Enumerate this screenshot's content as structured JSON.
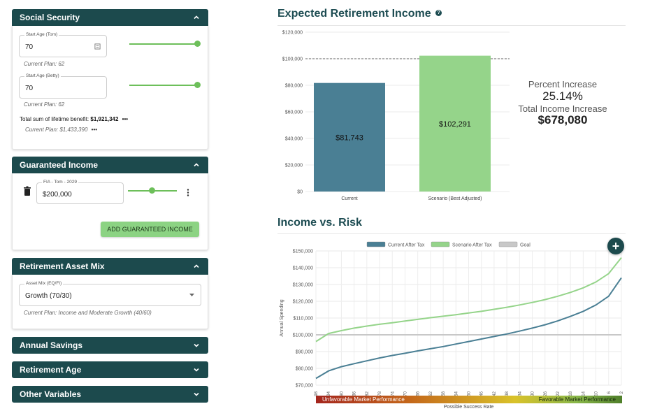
{
  "social_security": {
    "title": "Social Security",
    "tom": {
      "label": "Start Age (Tom)",
      "value": "70",
      "current_plan": "Current Plan: 62",
      "slider_fraction": 1.0
    },
    "betty": {
      "label": "Start Age (Betty)",
      "value": "70",
      "current_plan": "Current Plan: 62",
      "slider_fraction": 1.0
    },
    "total_label": "Total sum of lifetime benefit:",
    "total_value": "$1,921,342",
    "more": "•••",
    "total_current": "Current Plan: $1,433,390"
  },
  "guaranteed_income": {
    "title": "Guaranteed Income",
    "item_label": "FIA - Tom - 2029",
    "item_value": "$200,000",
    "slider_fraction": 0.5,
    "add_button": "ADD GUARANTEED INCOME"
  },
  "asset_mix": {
    "title": "Retirement Asset Mix",
    "field_label": "Asset Mix (EQ/FI)",
    "selected": "Growth (70/30)",
    "current_plan": "Current Plan: Income and Moderate Growth (40/60)"
  },
  "collapsed_sections": [
    {
      "title": "Annual Savings"
    },
    {
      "title": "Retirement Age"
    },
    {
      "title": "Other Variables"
    }
  ],
  "expected_income": {
    "title": "Expected Retirement Income",
    "help_icon": "?",
    "percent_label": "Percent Increase",
    "percent_value": "25.14%",
    "total_label": "Total Income Increase",
    "total_value": "$678,080"
  },
  "income_vs_risk": {
    "title": "Income vs. Risk",
    "fab_icon": "+",
    "band_left": "Unfavorable Market Performance",
    "band_right": "Favorable Market Performance"
  },
  "colors": {
    "header": "#1c4a4d",
    "current": "#4a7f94",
    "scenario": "#95d48a",
    "goal": "#c8c8c8"
  },
  "chart_data": [
    {
      "type": "bar",
      "categories": [
        "Current",
        "Scenario (Best Adjusted)"
      ],
      "values": [
        81743,
        102291
      ],
      "value_labels": [
        "$81,743",
        "$102,291"
      ],
      "ylim": [
        0,
        120000
      ],
      "yticks": [
        "$0",
        "$20,000",
        "$40,000",
        "$60,000",
        "$80,000",
        "$100,000",
        "$120,000"
      ],
      "reference_line": 100000,
      "grid": true
    },
    {
      "type": "line",
      "ylabel": "Annual Spending",
      "xlabel": "Possible Success Rate",
      "ylim": [
        70000,
        150000
      ],
      "yticks": [
        "$70,000",
        "$80,000",
        "$90,000",
        "$100,000",
        "$110,000",
        "$120,000",
        "$130,000",
        "$140,000",
        "$150,000"
      ],
      "xticks": [
        "98",
        "94",
        "90",
        "86",
        "82",
        "78",
        "74",
        "70",
        "66",
        "62",
        "58",
        "54",
        "50",
        "46",
        "42",
        "38",
        "34",
        "30",
        "26",
        "22",
        "18",
        "14",
        "10",
        "6",
        "2"
      ],
      "legend_position": "top",
      "grid": true,
      "series": [
        {
          "name": "Current After Tax",
          "values": [
            74000,
            78500,
            81000,
            82800,
            84500,
            86200,
            87700,
            89000,
            90400,
            91700,
            93000,
            94500,
            96000,
            97500,
            99000,
            100500,
            102200,
            104000,
            106000,
            108300,
            111000,
            114000,
            117800,
            123000,
            134000
          ]
        },
        {
          "name": "Scenario After Tax",
          "values": [
            96000,
            100800,
            102500,
            104000,
            105200,
            106300,
            107200,
            108200,
            109200,
            110200,
            111100,
            112000,
            113000,
            114000,
            115200,
            116400,
            117800,
            119300,
            121000,
            123000,
            125300,
            128000,
            131500,
            136500,
            146000
          ]
        },
        {
          "name": "Goal",
          "values": [
            100000,
            100000,
            100000,
            100000,
            100000,
            100000,
            100000,
            100000,
            100000,
            100000,
            100000,
            100000,
            100000,
            100000,
            100000,
            100000,
            100000,
            100000,
            100000,
            100000,
            100000,
            100000,
            100000,
            100000,
            100000
          ]
        }
      ]
    }
  ]
}
